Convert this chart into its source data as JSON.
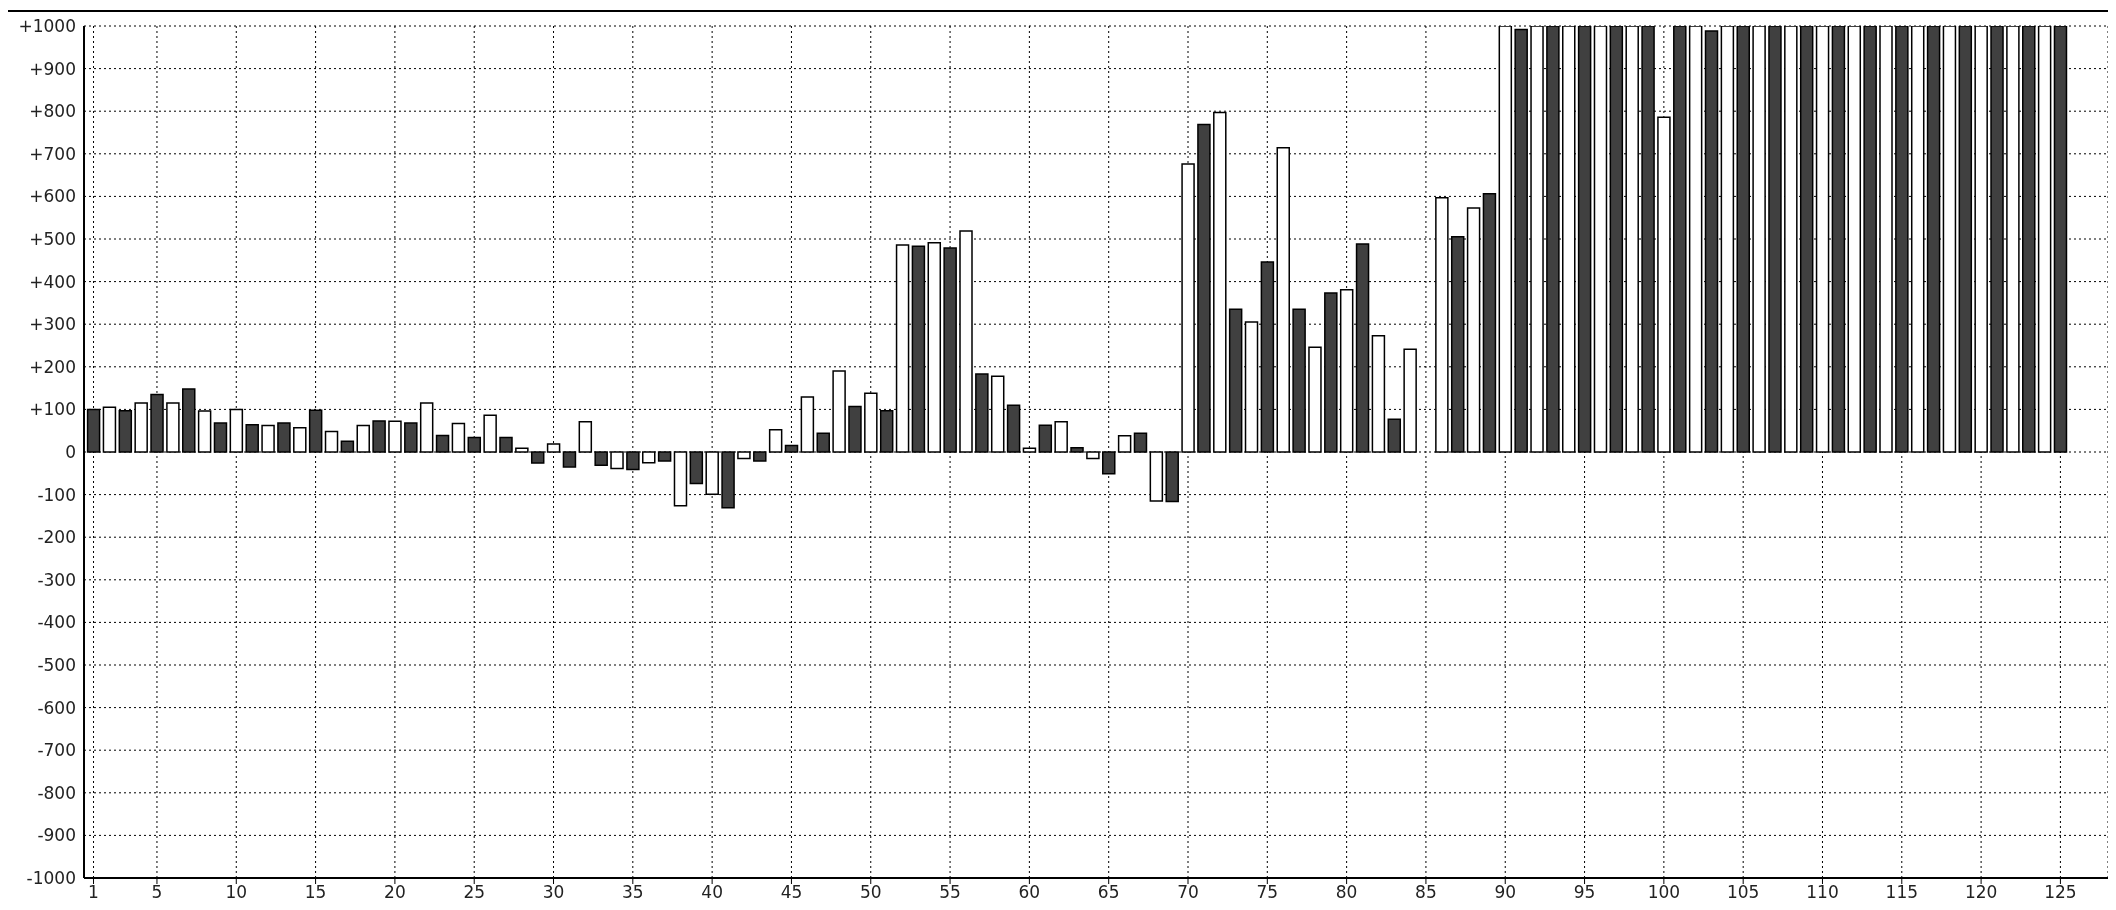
{
  "chart_data": {
    "type": "bar",
    "x": [
      1,
      2,
      3,
      4,
      5,
      6,
      7,
      8,
      9,
      10,
      11,
      12,
      13,
      14,
      15,
      16,
      17,
      18,
      19,
      20,
      21,
      22,
      23,
      24,
      25,
      26,
      27,
      28,
      29,
      30,
      31,
      32,
      33,
      34,
      35,
      36,
      37,
      38,
      39,
      40,
      41,
      42,
      43,
      44,
      45,
      46,
      47,
      48,
      49,
      50,
      51,
      52,
      53,
      54,
      55,
      56,
      57,
      58,
      59,
      60,
      61,
      62,
      63,
      64,
      65,
      66,
      67,
      68,
      69,
      70,
      71,
      72,
      73,
      74,
      75,
      76,
      77,
      78,
      79,
      80,
      81,
      82,
      83,
      84,
      85,
      86,
      87,
      88,
      89,
      90,
      91,
      92,
      93,
      94,
      95,
      96,
      97,
      98,
      99,
      100,
      101,
      102,
      103,
      104,
      105,
      106,
      107,
      108,
      109,
      110,
      111,
      112,
      113,
      114,
      115,
      116,
      117,
      118,
      119,
      120,
      121,
      122,
      123,
      124,
      125
    ],
    "values": [
      100,
      105,
      97,
      115,
      135,
      115,
      148,
      96,
      68,
      100,
      64,
      62,
      68,
      57,
      98,
      48,
      25,
      62,
      73,
      72,
      68,
      115,
      39,
      67,
      34,
      86,
      34,
      9,
      -26,
      19,
      -35,
      71,
      -31,
      -39,
      -41,
      -25,
      -21,
      -126,
      -74,
      -99,
      -131,
      -15,
      -21,
      52,
      15,
      129,
      44,
      190,
      107,
      138,
      97,
      486,
      483,
      491,
      479,
      519,
      183,
      178,
      110,
      9,
      63,
      71,
      10,
      -15,
      -51,
      38,
      44,
      -115,
      -116,
      676,
      769,
      797,
      335,
      305,
      446,
      714,
      335,
      246,
      373,
      381,
      488,
      273,
      77,
      241,
      null,
      597,
      505,
      573,
      606,
      1000,
      992,
      1000,
      1000,
      1000,
      1000,
      1000,
      1000,
      1000,
      1000,
      786,
      1000,
      1000,
      988,
      1000,
      1000,
      1000,
      1000,
      1000,
      1000,
      1000,
      1000,
      1000,
      1000,
      1000,
      1000,
      1000,
      1000,
      1000,
      1000,
      1000,
      1000,
      1000,
      1000,
      1000,
      1000
    ],
    "colors": [
      "#404040",
      "#ffffff",
      "#404040",
      "#ffffff",
      "#404040",
      "#ffffff",
      "#404040",
      "#ffffff",
      "#404040",
      "#ffffff",
      "#404040",
      "#ffffff",
      "#404040",
      "#ffffff",
      "#404040",
      "#ffffff",
      "#404040",
      "#ffffff",
      "#404040",
      "#ffffff",
      "#404040",
      "#ffffff",
      "#404040",
      "#ffffff",
      "#404040",
      "#ffffff",
      "#404040",
      "#ffffff",
      "#404040",
      "#ffffff",
      "#404040",
      "#ffffff",
      "#404040",
      "#ffffff",
      "#404040",
      "#ffffff",
      "#404040",
      "#ffffff",
      "#404040",
      "#ffffff",
      "#404040",
      "#ffffff",
      "#404040",
      "#ffffff",
      "#404040",
      "#ffffff",
      "#404040",
      "#ffffff",
      "#404040",
      "#ffffff",
      "#404040",
      "#ffffff",
      "#404040",
      "#ffffff",
      "#404040",
      "#ffffff",
      "#404040",
      "#ffffff",
      "#404040",
      "#ffffff",
      "#404040",
      "#ffffff",
      "#404040",
      "#ffffff",
      "#404040",
      "#ffffff",
      "#404040",
      "#ffffff",
      "#404040",
      "#ffffff",
      "#404040",
      "#ffffff",
      "#404040",
      "#ffffff",
      "#404040",
      "#ffffff",
      "#404040",
      "#ffffff",
      "#404040",
      "#ffffff",
      "#404040",
      "#ffffff",
      "#404040",
      "#ffffff",
      "#404040",
      "#ffffff",
      "#404040",
      "#ffffff",
      "#404040",
      "#ffffff",
      "#404040",
      "#ffffff",
      "#404040",
      "#ffffff",
      "#404040",
      "#ffffff",
      "#404040",
      "#ffffff",
      "#404040",
      "#ffffff",
      "#404040",
      "#ffffff",
      "#404040",
      "#ffffff",
      "#404040",
      "#ffffff",
      "#404040",
      "#ffffff",
      "#404040",
      "#ffffff",
      "#404040",
      "#ffffff",
      "#404040",
      "#ffffff",
      "#404040",
      "#ffffff",
      "#404040",
      "#ffffff",
      "#404040",
      "#ffffff",
      "#404040",
      "#ffffff",
      "#404040",
      "#ffffff",
      "#404040"
    ],
    "xlim": [
      0.4,
      128
    ],
    "xticks": [
      1,
      5,
      10,
      15,
      20,
      25,
      30,
      35,
      40,
      45,
      50,
      55,
      60,
      65,
      70,
      75,
      80,
      85,
      90,
      95,
      100,
      105,
      110,
      115,
      120,
      125
    ],
    "ylim": [
      -1000,
      1000
    ],
    "yticks": [
      {
        "value": -1000,
        "label": "-1000"
      },
      {
        "value": -900,
        "label": "-900"
      },
      {
        "value": -800,
        "label": "-800"
      },
      {
        "value": -700,
        "label": "-700"
      },
      {
        "value": -600,
        "label": "-600"
      },
      {
        "value": -500,
        "label": "-500"
      },
      {
        "value": -400,
        "label": "-400"
      },
      {
        "value": -300,
        "label": "-300"
      },
      {
        "value": -200,
        "label": "-200"
      },
      {
        "value": -100,
        "label": "-100"
      },
      0,
      {
        "value": 100,
        "label": "+100"
      },
      {
        "value": 200,
        "label": "+200"
      },
      {
        "value": 300,
        "label": "+300"
      },
      {
        "value": 400,
        "label": "+400"
      },
      {
        "value": 500,
        "label": "+500"
      },
      {
        "value": 600,
        "label": "+600"
      },
      {
        "value": 700,
        "label": "+700"
      },
      {
        "value": 800,
        "label": "+800"
      },
      {
        "value": 900,
        "label": "+900"
      },
      {
        "value": 1000,
        "label": "+1000"
      }
    ],
    "grid": true
  }
}
